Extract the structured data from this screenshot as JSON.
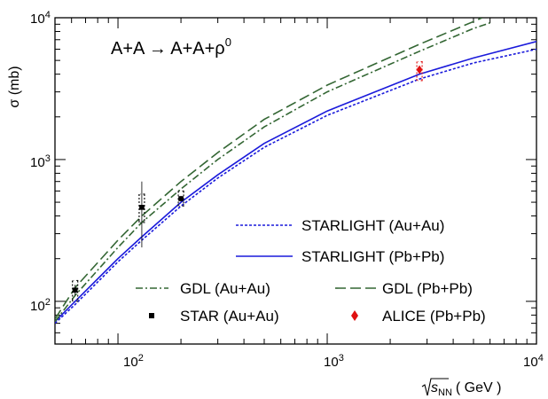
{
  "chart_data": {
    "type": "line",
    "title": "",
    "process_label": {
      "main": "A+A → A+A+ρ",
      "superscript": "0"
    },
    "xlabel": {
      "sqrt_arg": "s",
      "subscript": "NN",
      "unit": "( GeV )"
    },
    "ylabel": "σ (mb)",
    "xscale": "log",
    "yscale": "log",
    "xlim": [
      50,
      10000
    ],
    "ylim": [
      50,
      10000
    ],
    "x_ticks": [
      {
        "base": "10",
        "exp": "2",
        "value": 100
      },
      {
        "base": "10",
        "exp": "3",
        "value": 1000
      },
      {
        "base": "10",
        "exp": "4",
        "value": 10000
      }
    ],
    "y_ticks": [
      {
        "base": "10",
        "exp": "2",
        "value": 100
      },
      {
        "base": "10",
        "exp": "3",
        "value": 1000
      },
      {
        "base": "10",
        "exp": "4",
        "value": 10000
      }
    ],
    "grid": false,
    "legend_placement": "bottom-right",
    "series": [
      {
        "name": "STARLIGHT (Au+Au)",
        "kind": "line",
        "style": "dotted",
        "color": "#1a1adb",
        "x": [
          50,
          62.4,
          100,
          130,
          200,
          300,
          500,
          1000,
          2760,
          5000,
          10000
        ],
        "y": [
          70,
          95,
          190,
          270,
          470,
          740,
          1220,
          2050,
          3700,
          4800,
          6000
        ]
      },
      {
        "name": "STARLIGHT (Pb+Pb)",
        "kind": "line",
        "style": "solid",
        "color": "#1a1adb",
        "x": [
          50,
          62.4,
          100,
          130,
          200,
          300,
          500,
          1000,
          2760,
          5000,
          10000
        ],
        "y": [
          72,
          100,
          200,
          285,
          500,
          780,
          1300,
          2200,
          4000,
          5200,
          6800
        ]
      },
      {
        "name": "GDL (Au+Au)",
        "kind": "line",
        "style": "dash-dot",
        "color": "#336633",
        "x": [
          50,
          62.4,
          100,
          130,
          200,
          300,
          500,
          1000,
          2760,
          5000,
          6000
        ],
        "y": [
          72,
          110,
          240,
          360,
          620,
          1000,
          1700,
          3000,
          5800,
          8400,
          9200
        ]
      },
      {
        "name": "GDL (Pb+Pb)",
        "kind": "line",
        "style": "dashed",
        "color": "#336633",
        "x": [
          50,
          62.4,
          100,
          130,
          200,
          300,
          500,
          1000,
          2760,
          5000,
          5500
        ],
        "y": [
          75,
          125,
          270,
          400,
          700,
          1120,
          1920,
          3350,
          6500,
          9400,
          10000
        ]
      },
      {
        "name": "STAR (Au+Au)",
        "kind": "points",
        "marker": "square",
        "color": "#000000",
        "points": [
          {
            "x": 62.4,
            "y": 120,
            "stat_lo": 110,
            "stat_hi": 131,
            "sys_lo": 100,
            "sys_hi": 140
          },
          {
            "x": 130,
            "y": 460,
            "stat_lo": 240,
            "stat_hi": 700,
            "sys_lo": 360,
            "sys_hi": 570
          },
          {
            "x": 200,
            "y": 530,
            "stat_lo": 505,
            "stat_hi": 555,
            "sys_lo": 470,
            "sys_hi": 600
          }
        ]
      },
      {
        "name": "ALICE (Pb+Pb)",
        "kind": "points",
        "marker": "diamond",
        "color": "#e01010",
        "points": [
          {
            "x": 2760,
            "y": 4300,
            "stat_lo": 4100,
            "stat_hi": 4500,
            "sys_lo": 3600,
            "sys_hi": 4900
          }
        ]
      }
    ],
    "legend": [
      {
        "series": 0,
        "row": "right-1"
      },
      {
        "series": 1,
        "row": "right-2"
      },
      {
        "series": 2,
        "row": "left-3"
      },
      {
        "series": 3,
        "row": "right-3"
      },
      {
        "series": 4,
        "row": "left-4"
      },
      {
        "series": 5,
        "row": "right-4"
      }
    ]
  }
}
